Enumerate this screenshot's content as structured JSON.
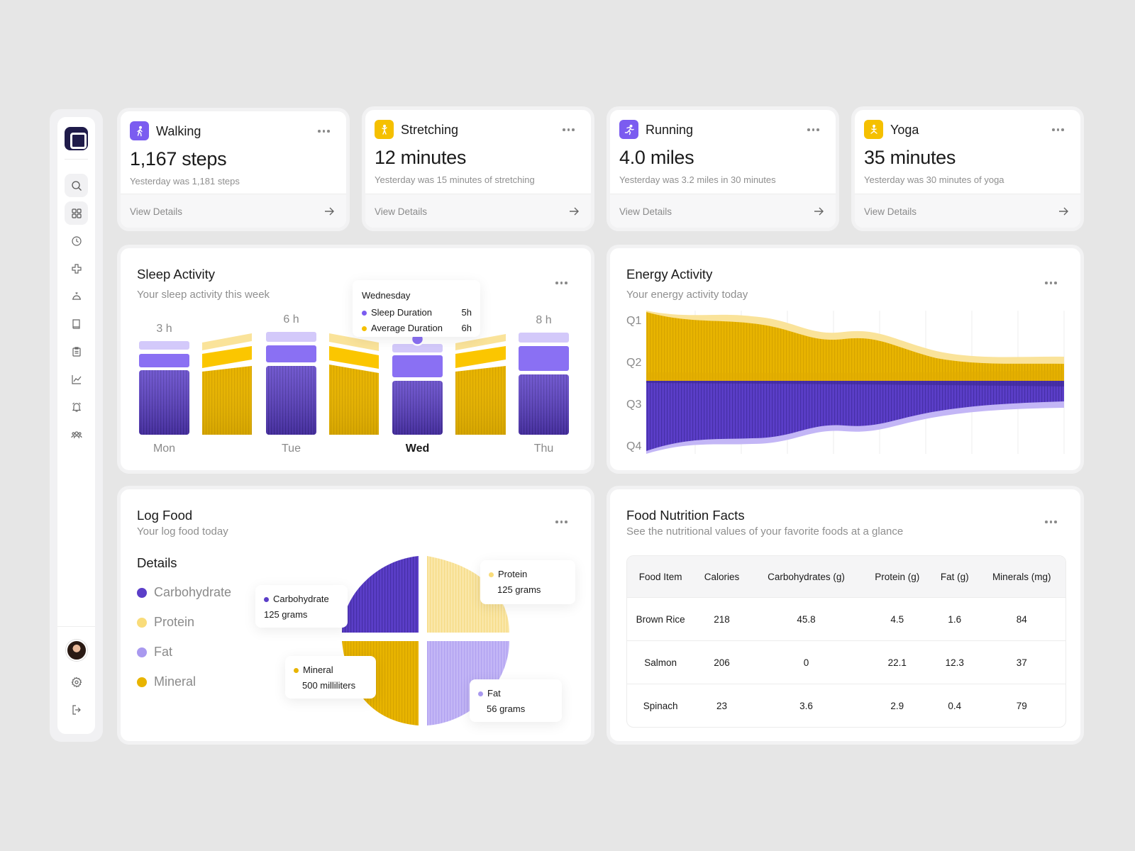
{
  "sidebar": {
    "items": [
      "search-icon",
      "dashboard-icon",
      "clock-icon",
      "health-cross-icon",
      "service-bell-icon",
      "book-icon",
      "clipboard-icon",
      "chart-line-icon",
      "alarm-icon",
      "users-icon"
    ],
    "footer": [
      "settings-icon",
      "logout-icon"
    ]
  },
  "stats": [
    {
      "title": "Walking",
      "value": "1,167 steps",
      "sub": "Yesterday was 1,181 steps",
      "link": "View Details",
      "icon": "walking-icon",
      "color": "#7b5cf0"
    },
    {
      "title": "Stretching",
      "value": "12 minutes",
      "sub": "Yesterday was 15 minutes of stretching",
      "link": "View Details",
      "icon": "stretching-icon",
      "color": "#f5c000"
    },
    {
      "title": "Running",
      "value": "4.0 miles",
      "sub": "Yesterday was 3.2 miles in 30 minutes",
      "link": "View Details",
      "icon": "running-icon",
      "color": "#7b5cf0"
    },
    {
      "title": "Yoga",
      "value": "35 minutes",
      "sub": "Yesterday was 30 minutes of yoga",
      "link": "View Details",
      "icon": "yoga-icon",
      "color": "#f5c000"
    }
  ],
  "sleep": {
    "title": "Sleep Activity",
    "subtitle": "Your sleep activity this week",
    "tooltip": {
      "day": "Wednesday",
      "rows": [
        {
          "label": "Sleep Duration",
          "value": "5h",
          "color": "#7b5cf0"
        },
        {
          "label": "Average Duration",
          "value": "6h",
          "color": "#f5c000"
        }
      ]
    },
    "chart_data": {
      "type": "bar",
      "categories": [
        "Mon",
        "",
        "Tue",
        "",
        "Wed",
        "",
        "Thu"
      ],
      "value_labels": [
        "3 h",
        "",
        "6 h",
        "",
        "",
        "",
        "8 h"
      ],
      "series_kind": [
        "sleep",
        "average",
        "sleep",
        "average",
        "sleep",
        "average",
        "sleep"
      ],
      "selected": "Wed"
    }
  },
  "energy": {
    "title": "Energy Activity",
    "subtitle": "Your energy activity today",
    "chart_data": {
      "type": "area",
      "y_labels": [
        "Q1",
        "Q2",
        "Q3",
        "Q4"
      ],
      "colors": {
        "upper": "#f5c000",
        "lower": "#5b3ec8"
      }
    }
  },
  "logfood": {
    "title": "Log Food",
    "subtitle": "Your log food today",
    "details_label": "Details",
    "legend": [
      {
        "label": "Carbohydrate",
        "color": "#5b3ec8"
      },
      {
        "label": "Protein",
        "color": "#f9dc7a"
      },
      {
        "label": "Fat",
        "color": "#a999ef"
      },
      {
        "label": "Mineral",
        "color": "#e8b400"
      }
    ],
    "callouts": {
      "carb": {
        "name": "Carbohydrate",
        "amount": "125 grams"
      },
      "protein": {
        "name": "Protein",
        "amount": "125 grams"
      },
      "mineral": {
        "name": "Mineral",
        "amount": "500 milliliters"
      },
      "fat": {
        "name": "Fat",
        "amount": "56 grams"
      }
    }
  },
  "nutrition": {
    "title": "Food Nutrition Facts",
    "subtitle": "See the nutritional values of your favorite foods at a glance",
    "columns": [
      "Food Item",
      "Calories",
      "Carbohydrates (g)",
      "Protein (g)",
      "Fat (g)",
      "Minerals (mg)"
    ],
    "rows": [
      [
        "Brown Rice",
        "218",
        "45.8",
        "4.5",
        "1.6",
        "84"
      ],
      [
        "Salmon",
        "206",
        "0",
        "22.1",
        "12.3",
        "37"
      ],
      [
        "Spinach",
        "23",
        "3.6",
        "2.9",
        "0.4",
        "79"
      ]
    ]
  }
}
